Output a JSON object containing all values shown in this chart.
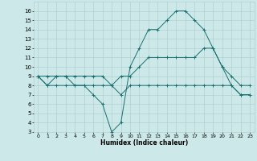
{
  "x_values": [
    0,
    1,
    2,
    3,
    4,
    5,
    6,
    7,
    8,
    9,
    10,
    11,
    12,
    13,
    14,
    15,
    16,
    17,
    18,
    19,
    20,
    21,
    22,
    23
  ],
  "line1": [
    9,
    8,
    9,
    9,
    8,
    8,
    7,
    6,
    3,
    4,
    10,
    12,
    14,
    14,
    15,
    16,
    16,
    15,
    14,
    12,
    10,
    8,
    7,
    7
  ],
  "line2": [
    9,
    9,
    9,
    9,
    9,
    9,
    9,
    9,
    8,
    9,
    9,
    10,
    11,
    11,
    11,
    11,
    11,
    11,
    12,
    12,
    10,
    9,
    8,
    8
  ],
  "line3": [
    9,
    8,
    8,
    8,
    8,
    8,
    8,
    8,
    8,
    7,
    8,
    8,
    8,
    8,
    8,
    8,
    8,
    8,
    8,
    8,
    8,
    8,
    7,
    7
  ],
  "color": "#1a7070",
  "bg_color": "#cce8e8",
  "grid_color": "#aacaca",
  "xlabel": "Humidex (Indice chaleur)",
  "ylim": [
    3,
    17
  ],
  "xlim": [
    -0.5,
    23.5
  ],
  "yticks": [
    3,
    4,
    5,
    6,
    7,
    8,
    9,
    10,
    11,
    12,
    13,
    14,
    15,
    16
  ],
  "xticks": [
    0,
    1,
    2,
    3,
    4,
    5,
    6,
    7,
    8,
    9,
    10,
    11,
    12,
    13,
    14,
    15,
    16,
    17,
    18,
    19,
    20,
    21,
    22,
    23
  ]
}
